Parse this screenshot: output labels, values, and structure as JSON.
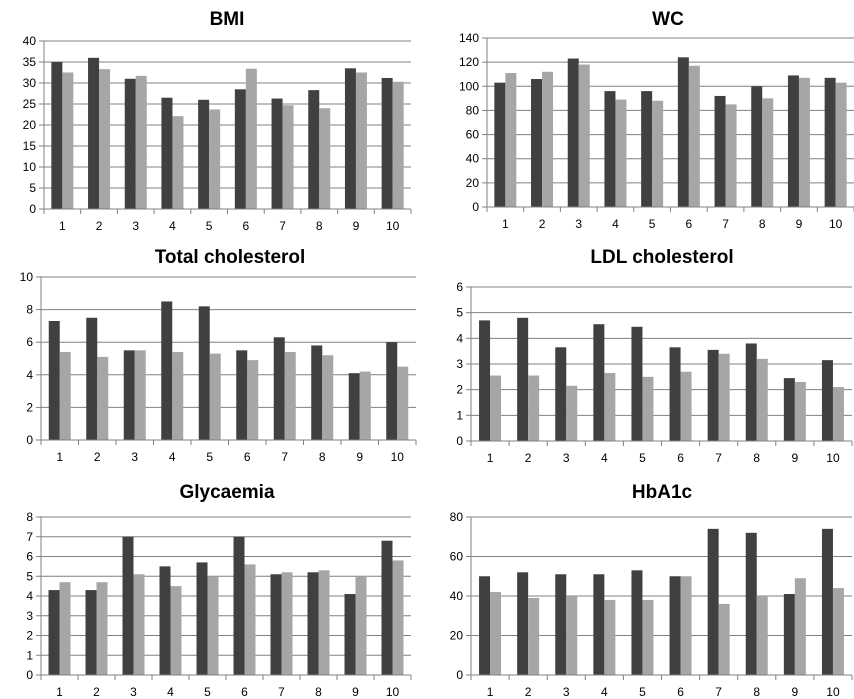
{
  "colors": {
    "series_dark": "#404040",
    "series_light": "#a6a6a6",
    "axis": "#808080",
    "grid": "#808080"
  },
  "chart_data": [
    {
      "type": "bar",
      "title": "BMI",
      "categories": [
        "1",
        "2",
        "3",
        "4",
        "5",
        "6",
        "7",
        "8",
        "9",
        "10"
      ],
      "series": [
        {
          "values": [
            35,
            36,
            31,
            26.5,
            26,
            28.5,
            26.3,
            28.3,
            33.5,
            31.2
          ]
        },
        {
          "values": [
            32.5,
            33.3,
            31.7,
            22.1,
            23.7,
            33.4,
            24.7,
            24,
            32.5,
            30.3
          ]
        }
      ],
      "ylim": [
        0,
        40
      ],
      "yticks": [
        "0",
        "5",
        "10",
        "15",
        "20",
        "25",
        "30",
        "35",
        "40"
      ],
      "grid": true
    },
    {
      "type": "bar",
      "title": "WC",
      "categories": [
        "1",
        "2",
        "3",
        "4",
        "5",
        "6",
        "7",
        "8",
        "9",
        "10"
      ],
      "series": [
        {
          "values": [
            103,
            106,
            123,
            96,
            96,
            124,
            92,
            100,
            109,
            107
          ]
        },
        {
          "values": [
            111,
            112,
            118,
            89,
            88,
            117,
            85,
            90,
            107,
            103
          ]
        }
      ],
      "ylim": [
        0,
        140
      ],
      "yticks": [
        "0",
        "20",
        "40",
        "60",
        "80",
        "100",
        "120",
        "140"
      ],
      "grid": true
    },
    {
      "type": "bar",
      "title": "Total cholesterol",
      "categories": [
        "1",
        "2",
        "3",
        "4",
        "5",
        "6",
        "7",
        "8",
        "9",
        "10"
      ],
      "series": [
        {
          "values": [
            7.3,
            7.5,
            5.5,
            8.5,
            8.2,
            5.5,
            6.3,
            5.8,
            4.1,
            6.0
          ]
        },
        {
          "values": [
            5.4,
            5.1,
            5.5,
            5.4,
            5.3,
            4.9,
            5.4,
            5.2,
            4.2,
            4.5
          ]
        }
      ],
      "ylim": [
        0,
        10
      ],
      "yticks": [
        "0",
        "2",
        "4",
        "6",
        "8",
        "10"
      ],
      "grid": true
    },
    {
      "type": "bar",
      "title": "LDL cholesterol",
      "categories": [
        "1",
        "2",
        "3",
        "4",
        "5",
        "6",
        "7",
        "8",
        "9",
        "10"
      ],
      "series": [
        {
          "values": [
            4.7,
            4.8,
            3.65,
            4.55,
            4.45,
            3.65,
            3.55,
            3.8,
            2.45,
            3.15
          ]
        },
        {
          "values": [
            2.55,
            2.55,
            2.15,
            2.65,
            2.5,
            2.7,
            3.4,
            3.2,
            2.3,
            2.1
          ]
        }
      ],
      "ylim": [
        0,
        6
      ],
      "yticks": [
        "0",
        "1",
        "2",
        "3",
        "4",
        "5",
        "6"
      ],
      "grid": true
    },
    {
      "type": "bar",
      "title": "Glycaemia",
      "categories": [
        "1",
        "2",
        "3",
        "4",
        "5",
        "6",
        "7",
        "8",
        "9",
        "10"
      ],
      "series": [
        {
          "values": [
            4.3,
            4.3,
            7.0,
            5.5,
            5.7,
            7.0,
            5.1,
            5.2,
            4.1,
            6.8
          ]
        },
        {
          "values": [
            4.7,
            4.7,
            5.1,
            4.5,
            5.0,
            5.6,
            5.2,
            5.3,
            5.0,
            5.8
          ]
        }
      ],
      "ylim": [
        0,
        8
      ],
      "yticks": [
        "0",
        "1",
        "2",
        "3",
        "4",
        "5",
        "6",
        "7",
        "8"
      ],
      "grid": true
    },
    {
      "type": "bar",
      "title": "HbA1c",
      "categories": [
        "1",
        "2",
        "3",
        "4",
        "5",
        "6",
        "7",
        "8",
        "9",
        "10"
      ],
      "series": [
        {
          "values": [
            50,
            52,
            51,
            51,
            53,
            50,
            74,
            72,
            41,
            74
          ]
        },
        {
          "values": [
            42,
            39,
            40,
            38,
            38,
            50,
            36,
            40,
            49,
            44
          ]
        }
      ],
      "ylim": [
        0,
        80
      ],
      "yticks": [
        "0",
        "20",
        "40",
        "60",
        "80"
      ],
      "grid": true
    }
  ]
}
